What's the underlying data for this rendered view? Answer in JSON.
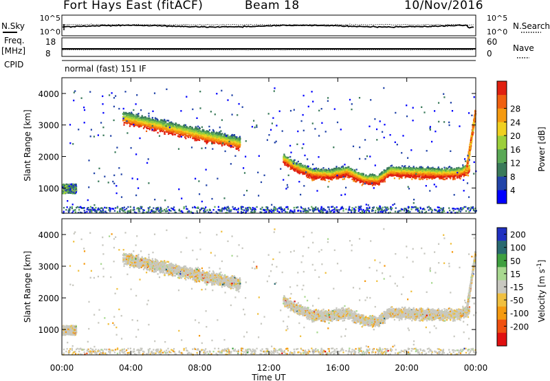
{
  "header": {
    "title": "Fort Hays East (fitACF)",
    "beam": "Beam 18",
    "date": "10/Nov/2016"
  },
  "top_panels": {
    "nsky_label": "N.Sky",
    "nsearch_label": "N.Search",
    "nsky_ticks": [
      "10^5",
      "10^0"
    ],
    "nsearch_ticks": [
      "10^5",
      "10^0"
    ],
    "freq_label": "Freq.",
    "freq_unit": "[MHz]",
    "freq_ticks": [
      "18",
      "8"
    ],
    "nave_label": "Nave",
    "nave_ticks": [
      "60",
      "0"
    ],
    "cpid_label": "CPID",
    "cpid_text": "normal (fast) 151 IF"
  },
  "chart_data": [
    {
      "type": "heatmap",
      "quantity": "Power",
      "colorbar_label": "Power [dB]",
      "colorbar_ticks": [
        "4",
        "8",
        "12",
        "16",
        "20",
        "24",
        "28"
      ],
      "colorbar_colors": [
        "#0000ff",
        "#2244a8",
        "#3a7a5a",
        "#5aa855",
        "#9ccf3a",
        "#f0d020",
        "#f59a10",
        "#f06010",
        "#e02010"
      ],
      "ylabel": "Slant Range [km]",
      "yticks": [
        "1000",
        "2000",
        "3000",
        "4000"
      ],
      "ylim": [
        200,
        4500
      ],
      "xlim": [
        0,
        24
      ],
      "xticks": [
        "00:00",
        "04:00",
        "08:00",
        "12:00",
        "16:00",
        "20:00",
        "00:00"
      ]
    },
    {
      "type": "heatmap",
      "quantity": "Velocity",
      "colorbar_label": "Velocity [m s^-1]",
      "colorbar_ticks": [
        "200",
        "100",
        "50",
        "15",
        "-15",
        "-50",
        "-100",
        "-200"
      ],
      "colorbar_colors": [
        "#2030c0",
        "#2a6a70",
        "#3fa040",
        "#a8d890",
        "#c8c8c0",
        "#f0c040",
        "#f59a10",
        "#f05010",
        "#e01010"
      ],
      "ylabel": "Slant Range [km]",
      "yticks": [
        "1000",
        "2000",
        "3000",
        "4000"
      ],
      "ylim": [
        200,
        4500
      ],
      "xlim": [
        0,
        24
      ],
      "xticks": [
        "00:00",
        "04:00",
        "08:00",
        "12:00",
        "16:00",
        "20:00",
        "00:00"
      ],
      "xlabel": "Time UT"
    }
  ]
}
